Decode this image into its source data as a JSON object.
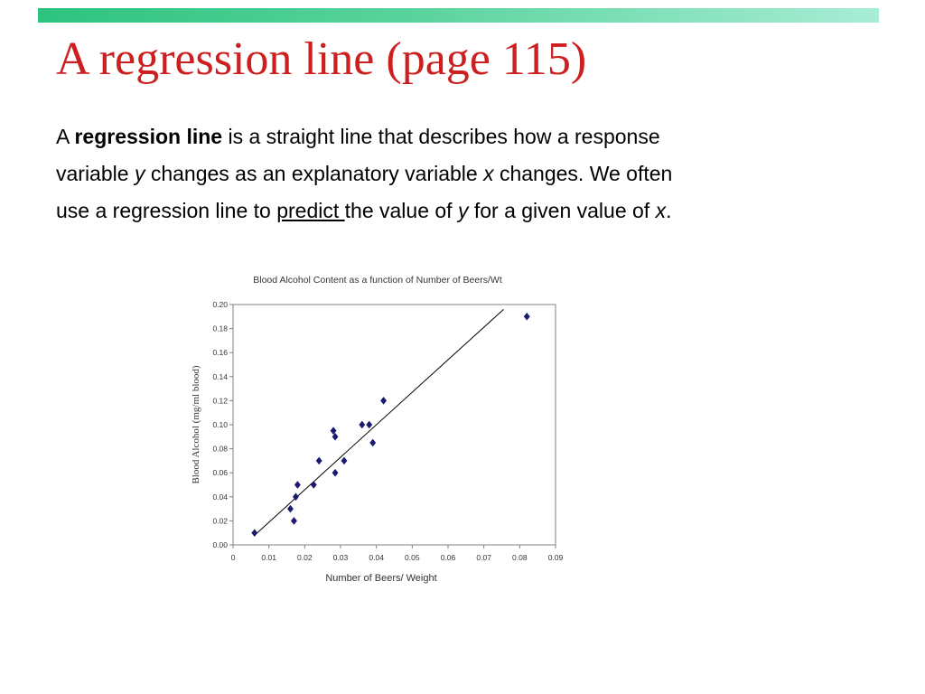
{
  "slide": {
    "title": "A regression line (page 115)",
    "paragraph": {
      "line1": {
        "a": "A ",
        "bold": "regression line",
        "rest": " is a straight line that describes how a response"
      },
      "line2": {
        "pre": "variable ",
        "y": "y",
        "mid": " changes as an explanatory variable ",
        "x": "x",
        "post": " changes.  We often"
      },
      "line3": {
        "pre": "use a regression line to ",
        "underlined": "predict ",
        "mid": "the value of ",
        "y": "y",
        "mid2": " for a given value of ",
        "x": "x",
        "end": "."
      }
    }
  },
  "colors": {
    "title": "#cc1f1f",
    "top_bar_start": "#2dc37f",
    "top_bar_end": "#a8edd6",
    "marker": "#1a1a6e",
    "line": "#000000"
  },
  "chart_data": {
    "type": "scatter",
    "title": "Blood Alcohol Content as a function of Number of Beers/Wt",
    "xlabel": "Number of Beers/ Weight",
    "ylabel": "Blood Alcohol (mg/ml blood)",
    "xlim": [
      0,
      0.09
    ],
    "ylim": [
      0,
      0.2
    ],
    "x_ticks": [
      "0",
      "0.01",
      "0.02",
      "0.03",
      "0.04",
      "0.05",
      "0.06",
      "0.07",
      "0.08",
      "0.09"
    ],
    "y_ticks": [
      "0.00",
      "0.02",
      "0.04",
      "0.06",
      "0.08",
      "0.10",
      "0.12",
      "0.14",
      "0.16",
      "0.18",
      "0.20"
    ],
    "grid": false,
    "marker": "diamond",
    "points": [
      {
        "x": 0.006,
        "y": 0.01
      },
      {
        "x": 0.016,
        "y": 0.03
      },
      {
        "x": 0.017,
        "y": 0.02
      },
      {
        "x": 0.0175,
        "y": 0.04
      },
      {
        "x": 0.018,
        "y": 0.05
      },
      {
        "x": 0.0225,
        "y": 0.05
      },
      {
        "x": 0.024,
        "y": 0.07
      },
      {
        "x": 0.028,
        "y": 0.095
      },
      {
        "x": 0.0285,
        "y": 0.09
      },
      {
        "x": 0.0285,
        "y": 0.06
      },
      {
        "x": 0.031,
        "y": 0.07
      },
      {
        "x": 0.036,
        "y": 0.1
      },
      {
        "x": 0.038,
        "y": 0.1
      },
      {
        "x": 0.039,
        "y": 0.085
      },
      {
        "x": 0.042,
        "y": 0.12
      },
      {
        "x": 0.082,
        "y": 0.19
      }
    ],
    "regression_line": {
      "x": [
        0.006,
        0.0755
      ],
      "y": [
        0.008,
        0.196
      ]
    }
  }
}
